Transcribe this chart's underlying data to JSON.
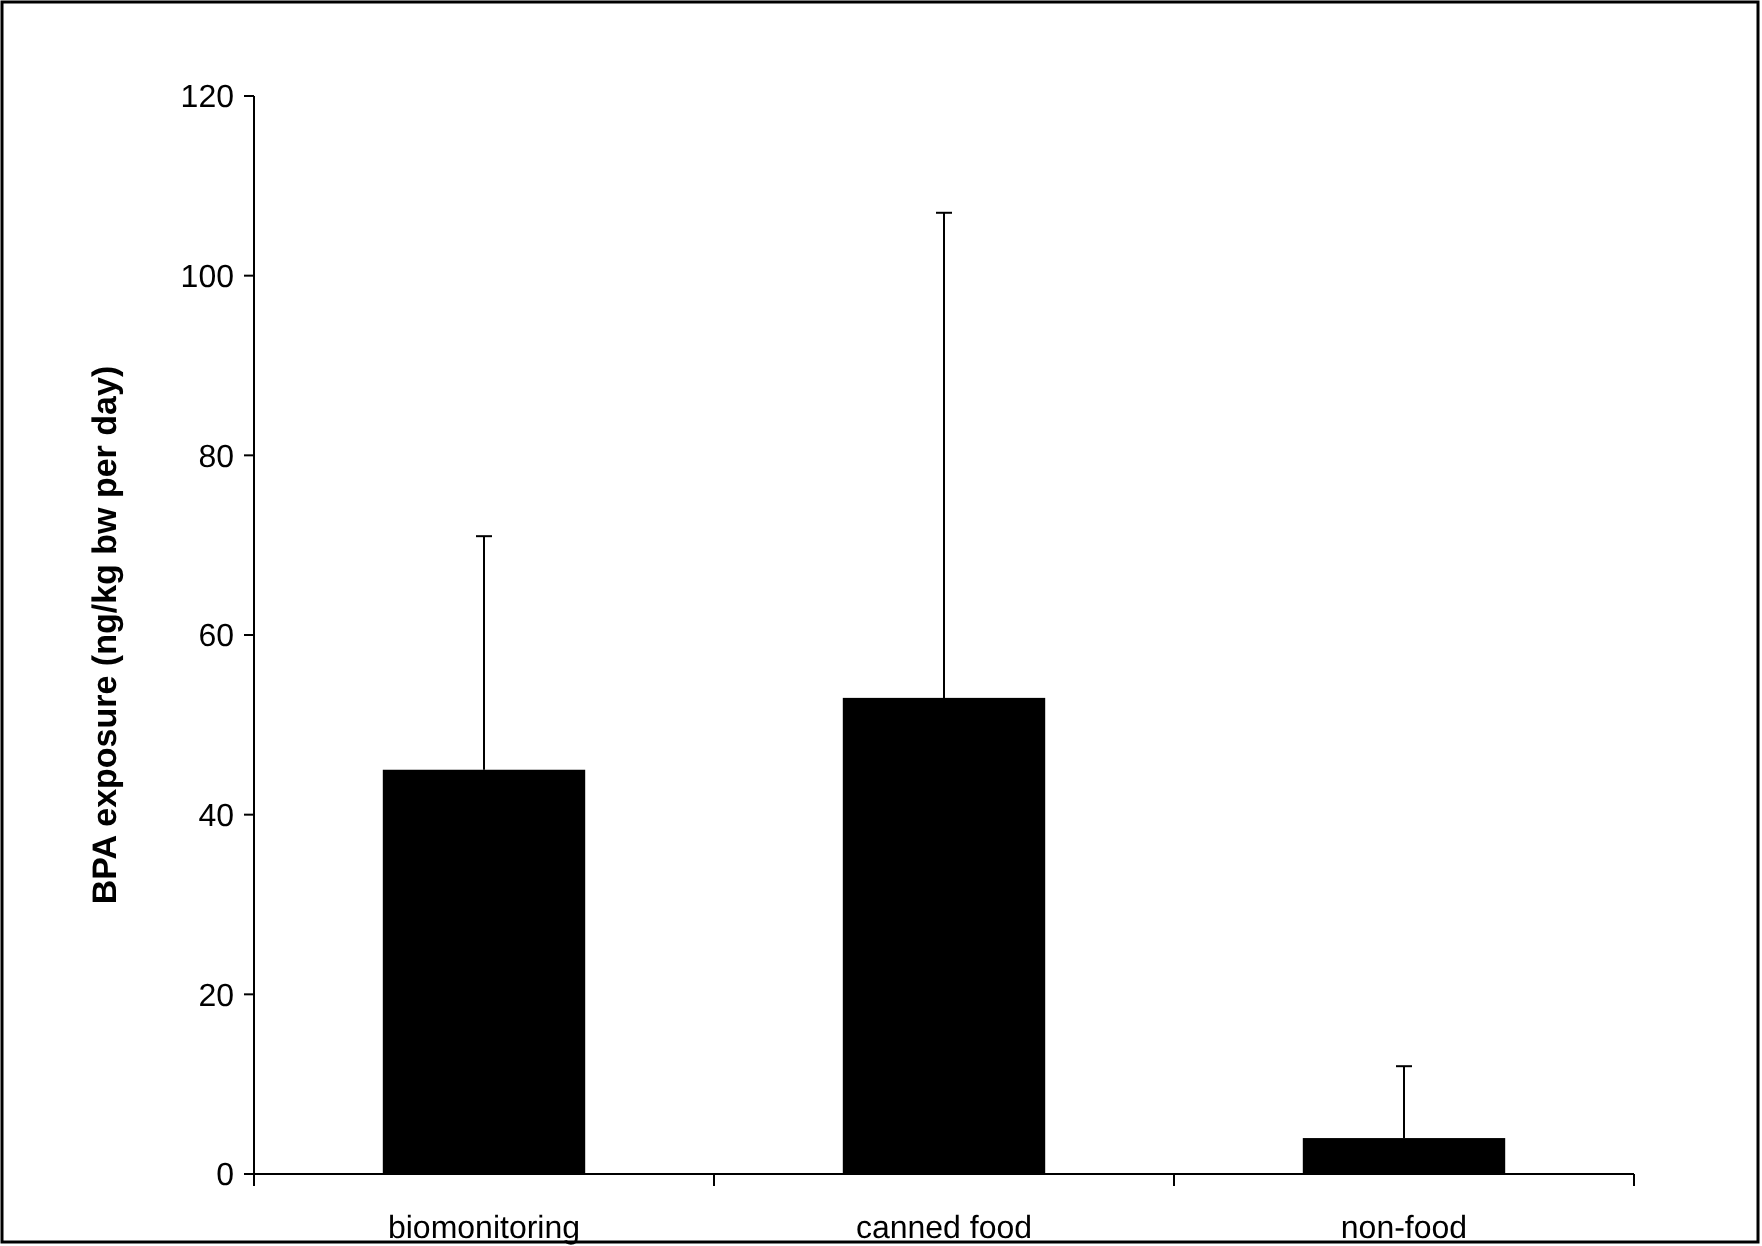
{
  "chart_data": {
    "type": "bar",
    "ylabel": "BPA exposure (ng/kg bw per day)",
    "categories": [
      "biomonitoring",
      "canned food",
      "non-food"
    ],
    "values": [
      45,
      53,
      4
    ],
    "errors": [
      [
        45,
        71
      ],
      [
        53,
        107
      ],
      [
        4,
        12
      ]
    ],
    "color": "#000000",
    "ylim": [
      0,
      120
    ],
    "yticks": [
      0,
      20,
      40,
      60,
      80,
      100,
      120
    ],
    "grid": false
  }
}
